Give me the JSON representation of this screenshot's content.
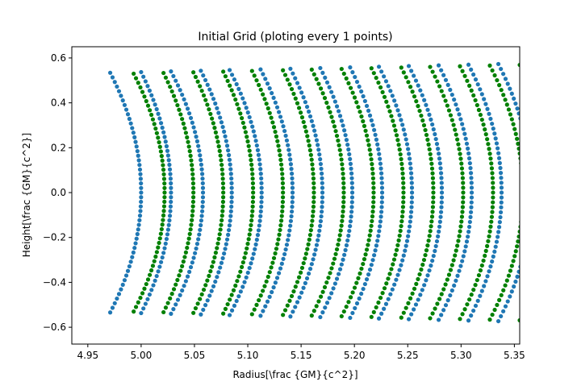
{
  "chart_data": {
    "type": "scatter",
    "title": "Initial Grid (ploting every 1 points)",
    "xlabel": "Radius[\\frac {GM}{c^2}]",
    "ylabel": "Height[\\frac {GM}{c^2}]",
    "xlim": [
      4.935,
      5.355
    ],
    "ylim": [
      -0.675,
      0.65
    ],
    "xticks": [
      4.95,
      5.0,
      5.05,
      5.1,
      5.15,
      5.2,
      5.25,
      5.3,
      5.35
    ],
    "xtick_labels": [
      "4.95",
      "5.00",
      "5.05",
      "5.10",
      "5.15",
      "5.20",
      "5.25",
      "5.30",
      "5.35"
    ],
    "yticks": [
      -0.6,
      -0.4,
      -0.2,
      0.0,
      0.2,
      0.4,
      0.6
    ],
    "ytick_labels": [
      "−0.6",
      "−0.4",
      "−0.2",
      "0.0",
      "0.2",
      "0.4",
      "0.6"
    ],
    "grid": false,
    "legend": "none",
    "colors": {
      "blue": "#1f77b4",
      "green": "#008000"
    },
    "series": [
      {
        "color": "blue",
        "x_edge": 4.971,
        "x_mid": 5.0,
        "y_top": 0.534
      },
      {
        "color": "green",
        "x_edge": 4.993,
        "x_mid": 5.022,
        "y_top": 0.53
      },
      {
        "color": "blue",
        "x_edge": 5.0,
        "x_mid": 5.028,
        "y_top": 0.537
      },
      {
        "color": "green",
        "x_edge": 5.021,
        "x_mid": 5.049,
        "y_top": 0.533
      },
      {
        "color": "blue",
        "x_edge": 5.028,
        "x_mid": 5.058,
        "y_top": 0.54
      },
      {
        "color": "green",
        "x_edge": 5.049,
        "x_mid": 5.077,
        "y_top": 0.536
      },
      {
        "color": "blue",
        "x_edge": 5.056,
        "x_mid": 5.085,
        "y_top": 0.543
      },
      {
        "color": "green",
        "x_edge": 5.077,
        "x_mid": 5.105,
        "y_top": 0.539
      },
      {
        "color": "blue",
        "x_edge": 5.083,
        "x_mid": 5.113,
        "y_top": 0.546
      },
      {
        "color": "green",
        "x_edge": 5.104,
        "x_mid": 5.133,
        "y_top": 0.542
      },
      {
        "color": "blue",
        "x_edge": 5.112,
        "x_mid": 5.142,
        "y_top": 0.549
      },
      {
        "color": "green",
        "x_edge": 5.133,
        "x_mid": 5.162,
        "y_top": 0.545
      },
      {
        "color": "blue",
        "x_edge": 5.14,
        "x_mid": 5.17,
        "y_top": 0.552
      },
      {
        "color": "green",
        "x_edge": 5.16,
        "x_mid": 5.19,
        "y_top": 0.548
      },
      {
        "color": "blue",
        "x_edge": 5.168,
        "x_mid": 5.198,
        "y_top": 0.555
      },
      {
        "color": "green",
        "x_edge": 5.188,
        "x_mid": 5.218,
        "y_top": 0.551
      },
      {
        "color": "blue",
        "x_edge": 5.196,
        "x_mid": 5.226,
        "y_top": 0.558
      },
      {
        "color": "green",
        "x_edge": 5.216,
        "x_mid": 5.246,
        "y_top": 0.554
      },
      {
        "color": "blue",
        "x_edge": 5.223,
        "x_mid": 5.254,
        "y_top": 0.561
      },
      {
        "color": "green",
        "x_edge": 5.244,
        "x_mid": 5.274,
        "y_top": 0.557
      },
      {
        "color": "blue",
        "x_edge": 5.251,
        "x_mid": 5.282,
        "y_top": 0.564
      },
      {
        "color": "green",
        "x_edge": 5.271,
        "x_mid": 5.302,
        "y_top": 0.56
      },
      {
        "color": "blue",
        "x_edge": 5.279,
        "x_mid": 5.31,
        "y_top": 0.567
      },
      {
        "color": "green",
        "x_edge": 5.299,
        "x_mid": 5.33,
        "y_top": 0.563
      },
      {
        "color": "blue",
        "x_edge": 5.307,
        "x_mid": 5.338,
        "y_top": 0.57
      },
      {
        "color": "green",
        "x_edge": 5.327,
        "x_mid": 5.358,
        "y_top": 0.566
      },
      {
        "color": "blue",
        "x_edge": 5.335,
        "x_mid": 5.366,
        "y_top": 0.573
      },
      {
        "color": "green",
        "x_edge": 5.355,
        "x_mid": 5.386,
        "y_top": 0.569
      }
    ]
  }
}
